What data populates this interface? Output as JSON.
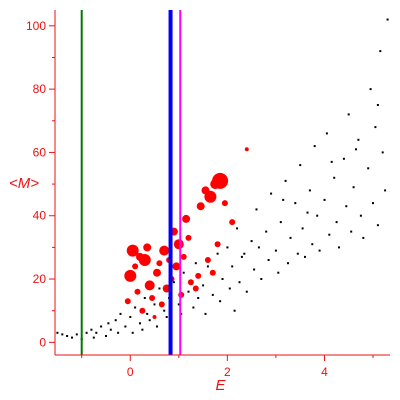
{
  "chart_data": {
    "type": "scatter",
    "xlabel": "E",
    "ylabel": "<M>",
    "xlim": [
      -1.55,
      5.35
    ],
    "ylim": [
      -4,
      105
    ],
    "x_ticks": [
      "0",
      "2",
      "4"
    ],
    "x_tick_values": [
      0,
      2,
      4
    ],
    "y_ticks": [
      "0",
      "20",
      "40",
      "60",
      "80",
      "100"
    ],
    "y_tick_values": [
      0,
      20,
      40,
      60,
      80,
      100
    ],
    "grid": false,
    "colors": {
      "axes": "#ee1111",
      "black_points": "#000000",
      "red_points": "#ff0000",
      "green_line": "#007700",
      "blue_line": "#0000ff",
      "magenta_line": "#ff00ff"
    },
    "vertical_lines": [
      {
        "x": -1.0,
        "color": "#007700",
        "width": 2
      },
      {
        "x": 0.83,
        "color": "#0000ff",
        "width": 4
      },
      {
        "x": 1.03,
        "color": "#ff00ff",
        "width": 2
      }
    ],
    "series": [
      {
        "color": "#000000",
        "size": "small",
        "points": [
          [
            -1.5,
            3
          ],
          [
            -1.4,
            2.5
          ],
          [
            -1.3,
            2
          ],
          [
            -1.2,
            1.5
          ],
          [
            -1.1,
            2.5
          ],
          [
            -1.0,
            1
          ],
          [
            -0.9,
            3
          ],
          [
            -0.8,
            4
          ],
          [
            -0.75,
            1.5
          ],
          [
            -0.7,
            3
          ],
          [
            -0.6,
            5
          ],
          [
            -0.5,
            2
          ],
          [
            -0.45,
            6
          ],
          [
            -0.4,
            4
          ],
          [
            -0.3,
            7
          ],
          [
            -0.25,
            3
          ],
          [
            -0.2,
            9
          ],
          [
            -0.1,
            5
          ],
          [
            0.0,
            8
          ],
          [
            0.05,
            3
          ],
          [
            0.1,
            11
          ],
          [
            0.2,
            6
          ],
          [
            0.25,
            4
          ],
          [
            0.3,
            14
          ],
          [
            0.35,
            9
          ],
          [
            0.4,
            7
          ],
          [
            0.5,
            12
          ],
          [
            0.55,
            5
          ],
          [
            0.6,
            17
          ],
          [
            0.7,
            10
          ],
          [
            0.75,
            8
          ],
          [
            0.8,
            14
          ],
          [
            0.9,
            19
          ],
          [
            1.0,
            12
          ],
          [
            1.05,
            9
          ],
          [
            1.1,
            22
          ],
          [
            1.2,
            16
          ],
          [
            1.3,
            11
          ],
          [
            1.35,
            25
          ],
          [
            1.4,
            14
          ],
          [
            1.5,
            18
          ],
          [
            1.55,
            9
          ],
          [
            1.6,
            24
          ],
          [
            1.7,
            15
          ],
          [
            1.8,
            28
          ],
          [
            1.85,
            13
          ],
          [
            1.9,
            20
          ],
          [
            2.0,
            30
          ],
          [
            2.05,
            17
          ],
          [
            2.1,
            24
          ],
          [
            2.2,
            36
          ],
          [
            2.25,
            19
          ],
          [
            2.3,
            27
          ],
          [
            2.4,
            16
          ],
          [
            2.5,
            32
          ],
          [
            2.55,
            23
          ],
          [
            2.6,
            42
          ],
          [
            2.7,
            20
          ],
          [
            2.8,
            35
          ],
          [
            2.85,
            26
          ],
          [
            2.9,
            47
          ],
          [
            3.0,
            29
          ],
          [
            3.05,
            22
          ],
          [
            3.1,
            38
          ],
          [
            3.2,
            51
          ],
          [
            3.25,
            25
          ],
          [
            3.3,
            33
          ],
          [
            3.4,
            44
          ],
          [
            3.45,
            28
          ],
          [
            3.5,
            56
          ],
          [
            3.55,
            36
          ],
          [
            3.6,
            27
          ],
          [
            3.7,
            48
          ],
          [
            3.75,
            31
          ],
          [
            3.8,
            62
          ],
          [
            3.85,
            40
          ],
          [
            3.9,
            29
          ],
          [
            4.0,
            45
          ],
          [
            4.05,
            66
          ],
          [
            4.1,
            34
          ],
          [
            4.2,
            52
          ],
          [
            4.25,
            38
          ],
          [
            4.3,
            30
          ],
          [
            4.4,
            58
          ],
          [
            4.45,
            43
          ],
          [
            4.5,
            72
          ],
          [
            4.55,
            35
          ],
          [
            4.6,
            49
          ],
          [
            4.7,
            64
          ],
          [
            4.75,
            40
          ],
          [
            4.8,
            33
          ],
          [
            4.9,
            55
          ],
          [
            4.95,
            80
          ],
          [
            5.0,
            44
          ],
          [
            5.05,
            68
          ],
          [
            5.1,
            37
          ],
          [
            5.15,
            92
          ],
          [
            5.2,
            60
          ],
          [
            5.25,
            48
          ],
          [
            5.3,
            102
          ],
          [
            2.15,
            10
          ],
          [
            2.35,
            28
          ],
          [
            2.65,
            30
          ],
          [
            3.15,
            45
          ],
          [
            3.65,
            41
          ],
          [
            4.15,
            57
          ],
          [
            4.65,
            61
          ],
          [
            5.1,
            75
          ]
        ]
      },
      {
        "color": "#ff0000",
        "size": "large",
        "points": [
          [
            0.05,
            29
          ],
          [
            0.3,
            26
          ],
          [
            0.7,
            29
          ],
          [
            0.4,
            18
          ],
          [
            1.0,
            31
          ],
          [
            1.65,
            46
          ],
          [
            1.85,
            51
          ],
          [
            0.2,
            27
          ],
          [
            0.35,
            30
          ],
          [
            0.55,
            22
          ],
          [
            0.75,
            17
          ],
          [
            0.95,
            24
          ],
          [
            0.0,
            21
          ],
          [
            0.9,
            35
          ],
          [
            1.15,
            39
          ],
          [
            1.25,
            19
          ],
          [
            1.45,
            43
          ],
          [
            1.55,
            48
          ],
          [
            1.75,
            50
          ],
          [
            0.45,
            14
          ],
          [
            0.25,
            10
          ],
          [
            0.15,
            16
          ],
          [
            0.65,
            12
          ],
          [
            0.85,
            20
          ],
          [
            1.1,
            27
          ],
          [
            1.2,
            33
          ],
          [
            1.35,
            17
          ],
          [
            1.6,
            26
          ],
          [
            1.8,
            31
          ],
          [
            1.95,
            44
          ],
          [
            0.6,
            25
          ],
          [
            0.8,
            26
          ],
          [
            1.05,
            15
          ],
          [
            1.4,
            21
          ],
          [
            1.7,
            22
          ],
          [
            2.1,
            38
          ],
          [
            2.4,
            61
          ],
          [
            0.1,
            24
          ],
          [
            -0.05,
            13
          ],
          [
            0.5,
            8
          ]
        ],
        "sizes": [
          6,
          6,
          5,
          5,
          5,
          6,
          8,
          4,
          4,
          4,
          4,
          4,
          6,
          4,
          4,
          3,
          4,
          4,
          5,
          3,
          3,
          3,
          3,
          3,
          3,
          3,
          3,
          3,
          3,
          3,
          3,
          3,
          3,
          3,
          3,
          3,
          2,
          3,
          3,
          2
        ]
      }
    ]
  }
}
